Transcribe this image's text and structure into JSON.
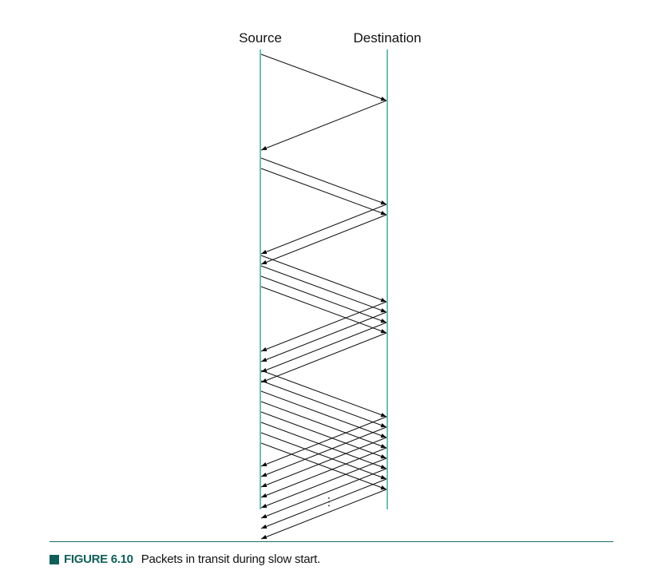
{
  "labels": {
    "source": "Source",
    "destination": "Destination"
  },
  "continuation": "⋮",
  "caption": {
    "label": "FIGURE 6.10",
    "text": "Packets in transit during slow start."
  },
  "colors": {
    "timeline": "#6fbfb5",
    "arrow": "#111111",
    "accent": "#0f5f5a"
  },
  "rounds": [
    {
      "packets": 1
    },
    {
      "packets": 2
    },
    {
      "packets": 4
    },
    {
      "packets": 8
    }
  ]
}
